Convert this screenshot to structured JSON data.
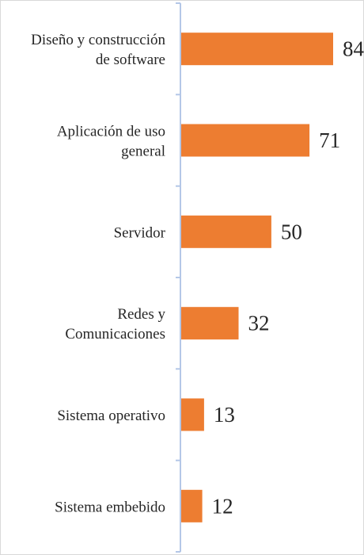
{
  "chart_data": {
    "type": "bar",
    "orientation": "horizontal",
    "categories": [
      [
        "Diseño y construcción",
        "de software"
      ],
      [
        "Aplicación de uso",
        "general"
      ],
      [
        "Servidor"
      ],
      [
        "Redes y",
        "Comunicaciones"
      ],
      [
        "Sistema operativo"
      ],
      [
        "Sistema embebido"
      ]
    ],
    "values": [
      84,
      71,
      50,
      32,
      13,
      12
    ],
    "data_labels": [
      "84",
      "71",
      "50",
      "32",
      "13",
      "12"
    ],
    "title": "",
    "xlabel": "",
    "ylabel": "",
    "xlim": [
      0,
      84
    ],
    "grid": false,
    "legend": "none",
    "colors": {
      "bar": "#ed7d31",
      "axis": "#b4c7e7",
      "text": "#262626"
    }
  }
}
